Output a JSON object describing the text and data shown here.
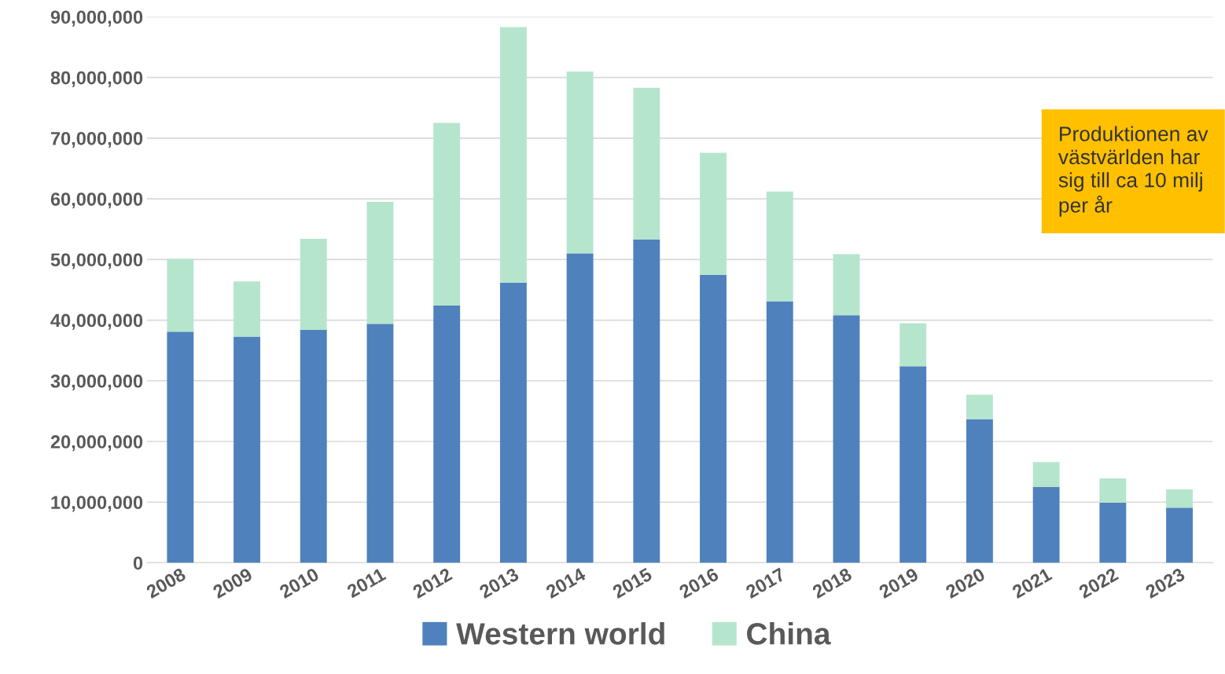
{
  "chart_data": {
    "type": "bar",
    "stacked": true,
    "categories": [
      "2008",
      "2009",
      "2010",
      "2011",
      "2012",
      "2013",
      "2014",
      "2015",
      "2016",
      "2017",
      "2018",
      "2019",
      "2020",
      "2021",
      "2022",
      "2023"
    ],
    "series": [
      {
        "name": "Western world",
        "color": "#4f81bd",
        "values": [
          38100000,
          37300000,
          38400000,
          39400000,
          42400000,
          46200000,
          51000000,
          53300000,
          47500000,
          43100000,
          40800000,
          32400000,
          23700000,
          12500000,
          9900000,
          9100000
        ]
      },
      {
        "name": "China",
        "color": "#b6e5cd",
        "values": [
          12000000,
          9100000,
          15000000,
          20100000,
          30100000,
          42100000,
          30000000,
          25000000,
          20100000,
          18100000,
          10100000,
          7100000,
          4000000,
          4100000,
          4000000,
          3000000
        ]
      }
    ],
    "ylim": [
      0,
      90000000
    ],
    "yticks": [
      0,
      {
        "value": 10000000,
        "label": "10,000,000"
      },
      {
        "value": 20000000,
        "label": "20,000,000"
      },
      {
        "value": 30000000,
        "label": "30,000,000"
      },
      {
        "value": 40000000,
        "label": "40,000,000"
      },
      {
        "value": 50000000,
        "label": "50,000,000"
      },
      {
        "value": 60000000,
        "label": "60,000,000"
      },
      {
        "value": 70000000,
        "label": "70,000,000"
      },
      {
        "value": 80000000,
        "label": "80,000,000"
      },
      {
        "value": 90000000,
        "label": "90,000,000"
      }
    ],
    "grid": "y",
    "legend": "bottom",
    "annotations": [
      "Produktionen av\nvästvärlden har\nsig till ca 10 milj\nper år"
    ]
  }
}
